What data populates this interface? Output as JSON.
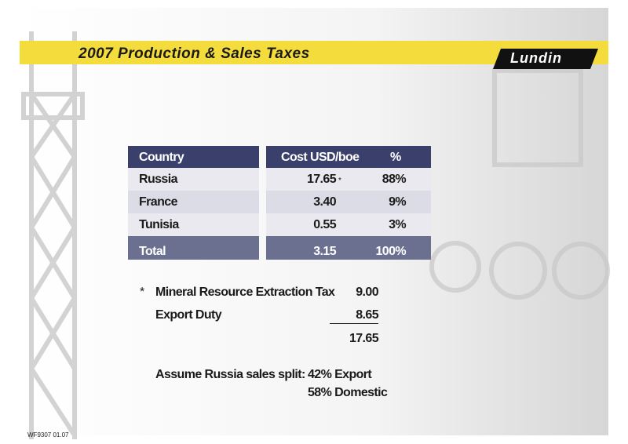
{
  "header": {
    "title": "2007 Production & Sales Taxes",
    "logo": "Lundin"
  },
  "table": {
    "columns": [
      "Country",
      "Cost USD/boe",
      "%"
    ],
    "rows": [
      [
        "Russia",
        "17.65",
        "88%"
      ],
      [
        "France",
        "3.40",
        "9%"
      ],
      [
        "Tunisia",
        "0.55",
        "3%"
      ]
    ],
    "total": [
      "Total",
      "3.15",
      "100%"
    ],
    "footnote_marker": "*"
  },
  "footnote": {
    "marker": "*",
    "items": [
      {
        "label": "Mineral Resource Extraction Tax",
        "value": "9.00"
      },
      {
        "label": "Export Duty",
        "value": "8.65"
      }
    ],
    "sum": "17.65"
  },
  "split": {
    "label": "Assume Russia sales split:",
    "lines": [
      "42% Export",
      "58% Domestic"
    ]
  },
  "footer": {
    "code": "WF9307 01.07"
  }
}
